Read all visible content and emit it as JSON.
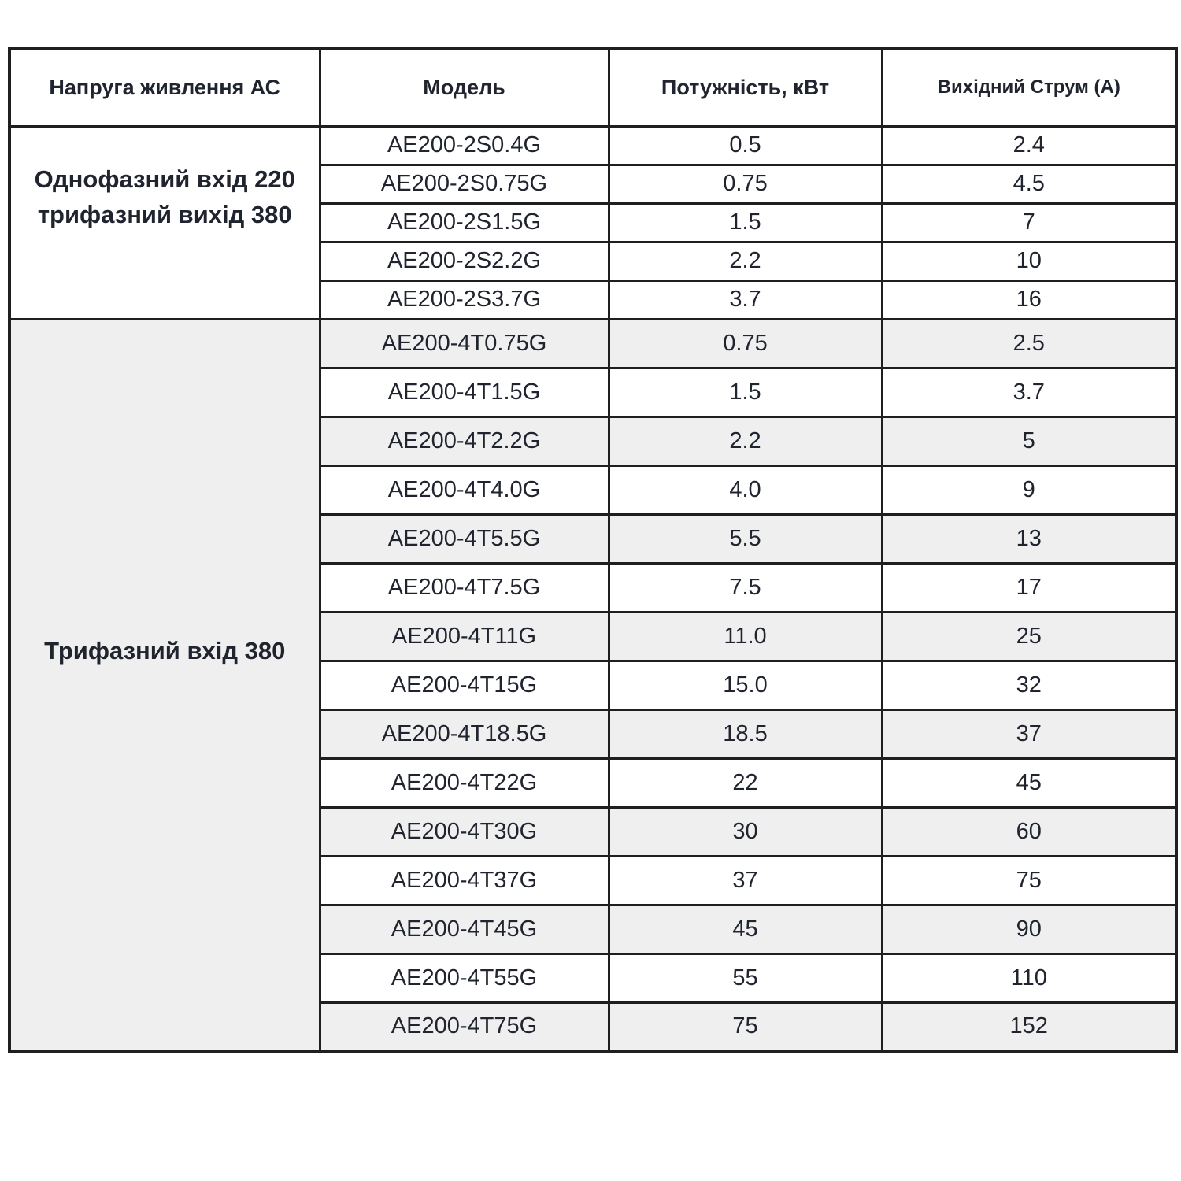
{
  "colors": {
    "header_bg": "#a7bedd",
    "header_text": "#1a2130",
    "row_bg": "#ffffff",
    "row_shade_bg": "#efefef",
    "border": "#1f1f1f",
    "cell_text": "#20242e"
  },
  "table": {
    "headers": [
      "Напруга живлення АС",
      "Модель",
      "Потужність, кВт",
      "Вихідний Струм (А)"
    ],
    "groups": [
      {
        "label": "Однофазний вхід 220\nтрифазний вихід 380",
        "rows": [
          [
            "AE200-2S0.4G",
            "0.5",
            "2.4"
          ],
          [
            "AE200-2S0.75G",
            "0.75",
            "4.5"
          ],
          [
            "AE200-2S1.5G",
            "1.5",
            "7"
          ],
          [
            "AE200-2S2.2G",
            "2.2",
            "10"
          ],
          [
            "AE200-2S3.7G",
            "3.7",
            "16"
          ]
        ]
      },
      {
        "label": "Трифазний вхід 380",
        "rows": [
          [
            "AE200-4T0.75G",
            "0.75",
            "2.5"
          ],
          [
            "AE200-4T1.5G",
            "1.5",
            "3.7"
          ],
          [
            "AE200-4T2.2G",
            "2.2",
            "5"
          ],
          [
            "AE200-4T4.0G",
            "4.0",
            "9"
          ],
          [
            "AE200-4T5.5G",
            "5.5",
            "13"
          ],
          [
            "AE200-4T7.5G",
            "7.5",
            "17"
          ],
          [
            "AE200-4T11G",
            "11.0",
            "25"
          ],
          [
            "AE200-4T15G",
            "15.0",
            "32"
          ],
          [
            "AE200-4T18.5G",
            "18.5",
            "37"
          ],
          [
            "AE200-4T22G",
            "22",
            "45"
          ],
          [
            "AE200-4T30G",
            "30",
            "60"
          ],
          [
            "AE200-4T37G",
            "37",
            "75"
          ],
          [
            "AE200-4T45G",
            "45",
            "90"
          ],
          [
            "AE200-4T55G",
            "55",
            "110"
          ],
          [
            "AE200-4T75G",
            "75",
            "152"
          ]
        ]
      }
    ]
  }
}
